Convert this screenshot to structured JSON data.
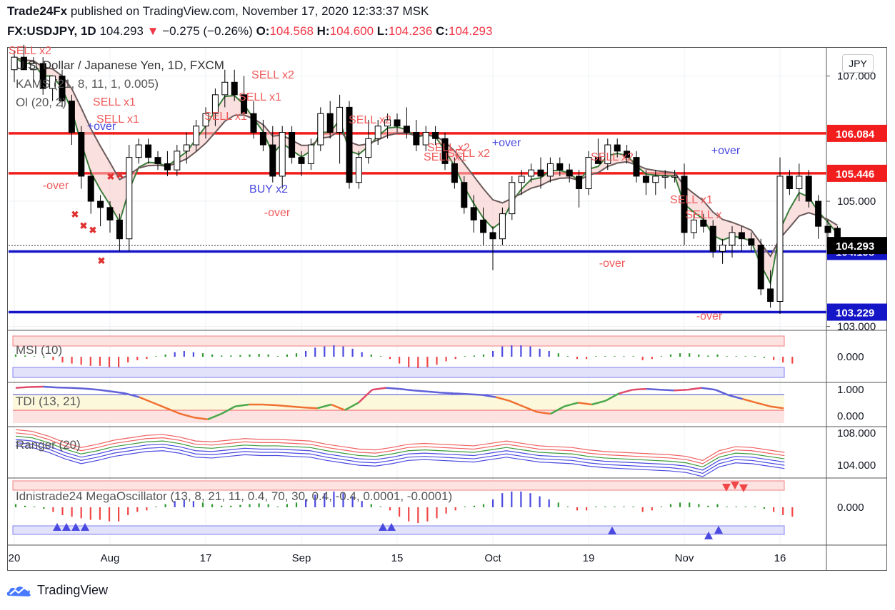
{
  "header": {
    "publisher": "Trade24Fx",
    "published_text": "published on TradingView.com, November 17, 2020 12:33:37 MSK",
    "symbol": "FX:USDJPY, 1D",
    "last": "104.293",
    "change": "−0.275 (−0.26%)",
    "o_label": "O:",
    "o_val": "104.568",
    "h_label": "H:",
    "h_val": "104.600",
    "l_label": "L:",
    "l_val": "104.236",
    "c_label": "C:",
    "c_val": "104.293"
  },
  "currency_button": "JPY",
  "brand": "TradingView",
  "legend": {
    "title": "U.S. Dollar / Japanese Yen, 1D, FXCM",
    "ind1": "KAMS (21, 8, 11, 1, 0.005)",
    "ind2": "Ol (20, 2)",
    "msi": "MSI (10)",
    "tdi": "TDI (13, 21)",
    "ranger": "Ranger (20)",
    "mega": "Idnistrade24 MegaOscillator (13, 8, 21, 11, 0.4, 70, 30, 0.4, -0.4, 0.0001, -0.0001)"
  },
  "chart_data": {
    "type": "candlestick",
    "price_axis": {
      "ylim": [
        102.95,
        107.45
      ],
      "ticks": [
        "107.000",
        "105.000",
        "103.000"
      ]
    },
    "x_ticks": [
      "20",
      "Aug",
      "17",
      "Sep",
      "15",
      "Oct",
      "19",
      "Nov",
      "16"
    ],
    "x_tick_index": [
      0,
      10,
      20,
      30,
      40,
      50,
      60,
      70,
      80
    ],
    "horizontal_lines": [
      {
        "value": 106.084,
        "label": "106.084",
        "color": "#f21e1e"
      },
      {
        "value": 105.446,
        "label": "105.446",
        "color": "#f21e1e"
      },
      {
        "value": 104.198,
        "label": "104.198",
        "color": "#1515c8"
      },
      {
        "value": 103.229,
        "label": "103.229",
        "color": "#1515c8"
      }
    ],
    "last_price": {
      "value": 104.293,
      "label": "104.293"
    },
    "candles": [
      [
        107.1,
        107.4,
        106.9,
        107.3
      ],
      [
        107.3,
        107.5,
        107.1,
        107.1
      ],
      [
        107.1,
        107.3,
        106.9,
        107.2
      ],
      [
        107.2,
        107.3,
        106.7,
        106.8
      ],
      [
        106.8,
        107.0,
        106.6,
        107.0
      ],
      [
        107.0,
        107.1,
        106.5,
        106.6
      ],
      [
        106.6,
        106.7,
        105.9,
        106.1
      ],
      [
        106.1,
        106.2,
        105.2,
        105.4
      ],
      [
        105.4,
        105.5,
        104.8,
        105.0
      ],
      [
        105.0,
        105.1,
        104.6,
        104.9
      ],
      [
        104.9,
        105.0,
        104.5,
        104.7
      ],
      [
        104.7,
        104.8,
        104.2,
        104.4
      ],
      [
        104.4,
        105.9,
        104.2,
        105.7
      ],
      [
        105.7,
        106.0,
        105.6,
        105.9
      ],
      [
        105.9,
        106.0,
        105.6,
        105.7
      ],
      [
        105.7,
        105.8,
        105.5,
        105.6
      ],
      [
        105.6,
        105.8,
        105.4,
        105.5
      ],
      [
        105.5,
        105.9,
        105.4,
        105.8
      ],
      [
        105.8,
        106.1,
        105.6,
        105.9
      ],
      [
        105.9,
        106.3,
        105.8,
        106.2
      ],
      [
        106.2,
        106.5,
        106.0,
        106.4
      ],
      [
        106.4,
        106.8,
        106.2,
        106.7
      ],
      [
        106.7,
        107.1,
        106.5,
        106.9
      ],
      [
        106.9,
        107.1,
        106.6,
        106.7
      ],
      [
        106.7,
        107.0,
        106.3,
        106.4
      ],
      [
        106.4,
        106.6,
        106.0,
        106.1
      ],
      [
        106.1,
        106.3,
        105.8,
        105.9
      ],
      [
        105.9,
        106.2,
        105.3,
        105.4
      ],
      [
        105.4,
        106.2,
        105.2,
        106.1
      ],
      [
        106.1,
        106.2,
        105.6,
        105.7
      ],
      [
        105.7,
        105.8,
        105.4,
        105.6
      ],
      [
        105.6,
        106.0,
        105.5,
        105.9
      ],
      [
        105.9,
        106.5,
        105.8,
        106.4
      ],
      [
        106.4,
        106.6,
        106.0,
        106.1
      ],
      [
        106.1,
        106.7,
        105.6,
        106.5
      ],
      [
        106.5,
        106.6,
        105.2,
        105.3
      ],
      [
        105.3,
        105.8,
        105.2,
        105.7
      ],
      [
        105.7,
        106.3,
        105.6,
        106.0
      ],
      [
        106.0,
        106.3,
        105.9,
        106.2
      ],
      [
        106.2,
        106.4,
        106.0,
        106.3
      ],
      [
        106.3,
        106.4,
        106.1,
        106.2
      ],
      [
        106.2,
        106.5,
        106.0,
        106.1
      ],
      [
        106.1,
        106.3,
        105.8,
        105.9
      ],
      [
        105.9,
        106.2,
        105.8,
        106.1
      ],
      [
        106.1,
        106.2,
        105.9,
        106.0
      ],
      [
        106.0,
        106.1,
        105.5,
        105.6
      ],
      [
        105.6,
        105.7,
        105.2,
        105.3
      ],
      [
        105.3,
        105.4,
        104.8,
        104.9
      ],
      [
        104.9,
        105.1,
        104.5,
        104.7
      ],
      [
        104.7,
        104.9,
        104.3,
        104.5
      ],
      [
        104.5,
        104.6,
        103.9,
        104.4
      ],
      [
        104.4,
        104.9,
        104.3,
        104.8
      ],
      [
        104.8,
        105.4,
        104.7,
        105.3
      ],
      [
        105.3,
        105.5,
        105.1,
        105.4
      ],
      [
        105.4,
        105.6,
        105.3,
        105.5
      ],
      [
        105.5,
        105.7,
        105.2,
        105.4
      ],
      [
        105.4,
        105.7,
        105.3,
        105.6
      ],
      [
        105.6,
        105.7,
        105.4,
        105.5
      ],
      [
        105.5,
        105.6,
        105.3,
        105.4
      ],
      [
        105.4,
        105.5,
        104.9,
        105.2
      ],
      [
        105.2,
        105.8,
        105.1,
        105.7
      ],
      [
        105.7,
        106.0,
        105.6,
        105.6
      ],
      [
        105.6,
        106.0,
        105.5,
        105.9
      ],
      [
        105.9,
        106.0,
        105.7,
        105.8
      ],
      [
        105.8,
        105.9,
        105.6,
        105.7
      ],
      [
        105.7,
        105.8,
        105.3,
        105.4
      ],
      [
        105.4,
        105.5,
        105.1,
        105.3
      ],
      [
        105.3,
        105.5,
        105.1,
        105.4
      ],
      [
        105.4,
        105.5,
        105.2,
        105.4
      ],
      [
        105.4,
        105.5,
        105.3,
        105.4
      ],
      [
        105.4,
        105.6,
        104.3,
        104.5
      ],
      [
        104.5,
        104.8,
        104.4,
        104.7
      ],
      [
        104.7,
        104.8,
        104.5,
        104.6
      ],
      [
        104.6,
        104.7,
        104.1,
        104.2
      ],
      [
        104.2,
        104.4,
        104.0,
        104.3
      ],
      [
        104.3,
        104.6,
        104.1,
        104.5
      ],
      [
        104.5,
        104.6,
        104.2,
        104.4
      ],
      [
        104.4,
        104.5,
        104.2,
        104.3
      ],
      [
        104.3,
        104.4,
        103.5,
        103.6
      ],
      [
        103.6,
        103.9,
        103.3,
        103.4
      ],
      [
        103.4,
        105.7,
        103.2,
        105.4
      ],
      [
        105.4,
        105.5,
        105.1,
        105.2
      ],
      [
        105.2,
        105.6,
        105.0,
        105.4
      ],
      [
        105.4,
        105.5,
        104.9,
        105.0
      ],
      [
        105.0,
        105.1,
        104.4,
        104.6
      ],
      [
        104.6,
        104.7,
        104.3,
        104.5
      ],
      [
        104.568,
        104.6,
        104.236,
        104.293
      ]
    ],
    "signals": [
      {
        "text": "SELL x2",
        "type": "sell"
      },
      {
        "text": "SELL x1",
        "type": "sell"
      },
      {
        "text": "SELL x1",
        "type": "sell"
      },
      {
        "text": "SELL x1",
        "type": "sell"
      },
      {
        "text": "+over",
        "type": "buy"
      },
      {
        "text": "-over",
        "type": "sell"
      },
      {
        "text": "SELL x1",
        "type": "sell"
      },
      {
        "text": "SELL x2",
        "type": "sell"
      },
      {
        "text": "SELL x2",
        "type": "sell"
      },
      {
        "text": "BUY x2",
        "type": "buy"
      },
      {
        "text": "-over",
        "type": "sell"
      },
      {
        "text": "SELL x2",
        "type": "sell"
      },
      {
        "text": "SELL x1",
        "type": "sell"
      },
      {
        "text": "SELL x2",
        "type": "sell"
      },
      {
        "text": "+over",
        "type": "buy"
      },
      {
        "text": "SELL x2",
        "type": "sell"
      },
      {
        "text": "-over",
        "type": "sell"
      },
      {
        "text": "SELL x1",
        "type": "sell"
      },
      {
        "text": "SELL x",
        "type": "sell"
      },
      {
        "text": "+over",
        "type": "buy"
      },
      {
        "text": "-over",
        "type": "sell"
      }
    ],
    "msi": {
      "ytick": "0.000",
      "values": [
        0.2,
        0.1,
        0.05,
        -0.1,
        -0.3,
        -0.5,
        -0.6,
        -0.7,
        -0.8,
        -0.8,
        -0.9,
        -0.9,
        -0.5,
        -0.3,
        -0.2,
        0.05,
        0.2,
        0.4,
        0.5,
        0.4,
        0.3,
        0.2,
        0.1,
        0.1,
        0.15,
        0.2,
        0.25,
        0.2,
        0.05,
        0.2,
        0.3,
        0.5,
        0.8,
        0.9,
        1.0,
        0.9,
        0.7,
        0.4,
        0.2,
        0.05,
        -0.2,
        -0.6,
        -0.9,
        -1.0,
        -0.9,
        -0.7,
        -0.4,
        -0.2,
        0.05,
        0.1,
        0.2,
        0.5,
        0.9,
        1.0,
        1.0,
        0.9,
        0.7,
        0.5,
        0.3,
        0.05,
        -0.2,
        -0.2,
        0.05,
        0.05,
        0.05,
        0.05,
        0.05,
        -0.3,
        -0.2,
        0.05,
        0.2,
        0.3,
        0.3,
        0.2,
        0.1,
        0.2,
        0.05,
        0.05,
        0.05,
        0.05,
        -0.1,
        -0.3,
        -0.5,
        -0.6
      ]
    },
    "tdi": {
      "yticks": [
        "1.000",
        "0.000"
      ],
      "values": [
        0.95,
        0.97,
        0.98,
        0.96,
        0.95,
        0.93,
        0.9,
        0.85,
        0.8,
        0.7,
        0.55,
        0.4,
        0.25,
        0.15,
        0.1,
        0.25,
        0.45,
        0.5,
        0.5,
        0.48,
        0.45,
        0.42,
        0.4,
        0.5,
        0.35,
        0.55,
        0.9,
        0.95,
        0.92,
        0.88,
        0.85,
        0.82,
        0.8,
        0.78,
        0.76,
        0.7,
        0.6,
        0.45,
        0.3,
        0.25,
        0.45,
        0.55,
        0.5,
        0.6,
        0.8,
        0.9,
        0.92,
        0.9,
        0.88,
        0.9,
        0.95,
        0.9,
        0.75,
        0.65,
        0.55,
        0.45,
        0.4
      ]
    },
    "ranger": {
      "yticks": [
        "108.000",
        "104.000"
      ],
      "values": [
        107.4,
        107.2,
        106.6,
        105.8,
        105.2,
        105.6,
        106.1,
        106.4,
        106.7,
        106.8,
        106.5,
        106.0,
        105.9,
        106.1,
        106.3,
        106.2,
        106.2,
        106.1,
        106.0,
        105.6,
        105.3,
        105.0,
        104.9,
        105.2,
        105.6,
        105.7,
        105.6,
        105.5,
        105.4,
        105.7,
        106.0,
        105.7,
        105.4,
        105.3,
        105.2,
        104.9,
        104.7,
        104.6,
        104.5,
        104.4,
        104.3,
        104.1,
        103.6,
        104.8,
        105.3,
        105.2,
        104.9,
        104.6
      ]
    },
    "megaoscillator": {
      "ytick": "0.000"
    }
  }
}
